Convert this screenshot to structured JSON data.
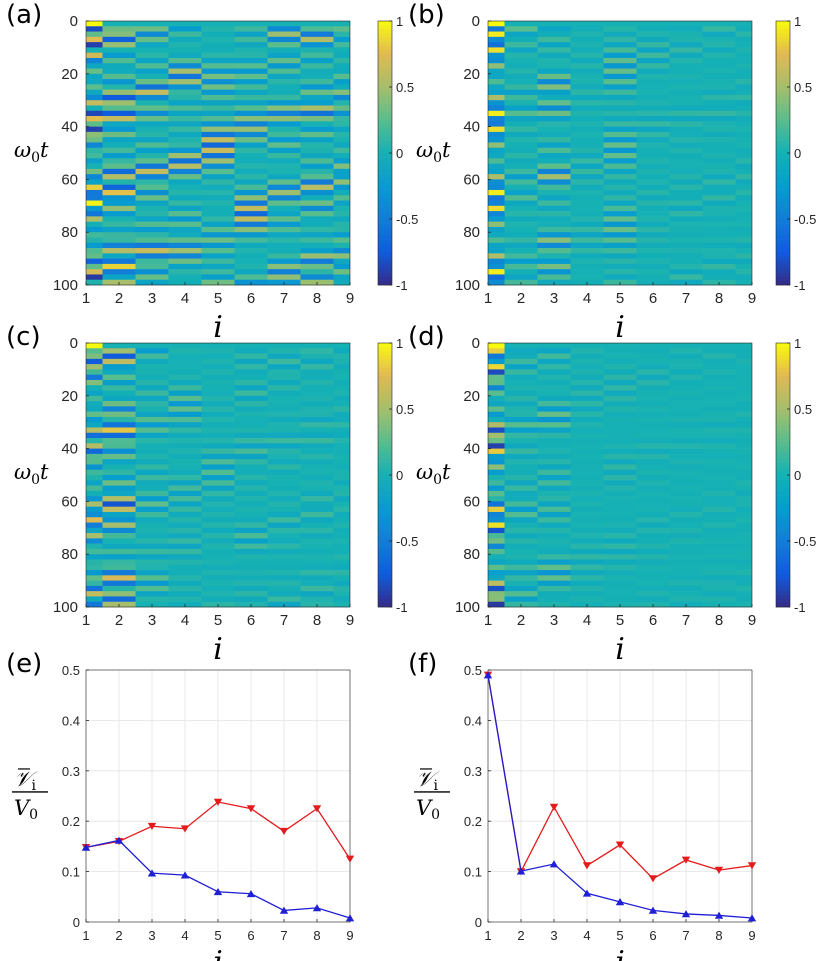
{
  "panel_letters": [
    "(a)",
    "(b)",
    "(c)",
    "(d)",
    "(e)",
    "(f)"
  ],
  "heatmap_axes": {
    "ylabel_main": "ω",
    "ylabel_sub": "0",
    "ylabel_tail": "t",
    "xlabel": "i",
    "x_ticks": [
      "1",
      "2",
      "3",
      "4",
      "5",
      "6",
      "7",
      "8",
      "9"
    ],
    "y_ticks": [
      "0",
      "20",
      "40",
      "60",
      "80",
      "100"
    ],
    "colorbar_ticks": [
      "1",
      "0.5",
      "0",
      "-0.5",
      "-1"
    ]
  },
  "line_axes": {
    "xlabel": "i",
    "ylabel_num_main": "𝒱",
    "ylabel_num_sub": "i",
    "ylabel_den_main": "V",
    "ylabel_den_sub": "0",
    "x_ticks": [
      "1",
      "2",
      "3",
      "4",
      "5",
      "6",
      "7",
      "8",
      "9"
    ],
    "y_ticks": [
      "0",
      "0.1",
      "0.2",
      "0.3",
      "0.4",
      "0.5"
    ]
  },
  "chart_data": [
    {
      "type": "heatmap",
      "panel": "(a)",
      "title": "",
      "xlabel": "i",
      "ylabel": "ω0 t",
      "xlim": [
        1,
        9
      ],
      "ylim": [
        0,
        100
      ],
      "clim": [
        -1,
        1
      ],
      "colormap": "parula",
      "description_columns": "nine oscillator columns; at t=0 column 1 = 1, others 0; energy travels through all columns (strong bands in columns 1-9)",
      "amplitude_envelope": [
        1.0,
        0.85,
        0.65,
        0.6,
        0.7,
        0.65,
        0.55,
        0.6,
        0.45
      ]
    },
    {
      "type": "heatmap",
      "panel": "(b)",
      "title": "",
      "xlabel": "i",
      "ylabel": "ω0 t",
      "xlim": [
        1,
        9
      ],
      "ylim": [
        0,
        100
      ],
      "clim": [
        -1,
        1
      ],
      "colormap": "parula",
      "amplitude_envelope": [
        1.0,
        0.25,
        0.5,
        0.15,
        0.3,
        0.15,
        0.12,
        0.12,
        0.1
      ]
    },
    {
      "type": "heatmap",
      "panel": "(c)",
      "title": "",
      "xlabel": "i",
      "ylabel": "ω0 t",
      "xlim": [
        1,
        9
      ],
      "ylim": [
        0,
        100
      ],
      "clim": [
        -1,
        1
      ],
      "colormap": "parula",
      "amplitude_envelope": [
        0.75,
        0.8,
        0.3,
        0.28,
        0.22,
        0.2,
        0.15,
        0.15,
        0.1
      ]
    },
    {
      "type": "heatmap",
      "panel": "(d)",
      "title": "",
      "xlabel": "i",
      "ylabel": "ω0 t",
      "xlim": [
        1,
        9
      ],
      "ylim": [
        0,
        100
      ],
      "clim": [
        -1,
        1
      ],
      "colormap": "parula",
      "amplitude_envelope": [
        1.0,
        0.25,
        0.3,
        0.12,
        0.1,
        0.08,
        0.06,
        0.06,
        0.05
      ]
    },
    {
      "type": "line",
      "panel": "(e)",
      "title": "",
      "xlabel": "i",
      "ylabel": "V̄i / V0",
      "xlim": [
        1,
        9
      ],
      "ylim": [
        0,
        0.5
      ],
      "grid": true,
      "x": [
        1,
        2,
        3,
        4,
        5,
        6,
        7,
        8,
        9
      ],
      "series": [
        {
          "name": "red",
          "color": "#e41a1c",
          "marker": "down-triangle",
          "values": [
            0.148,
            0.16,
            0.19,
            0.185,
            0.238,
            0.225,
            0.18,
            0.225,
            0.125
          ]
        },
        {
          "name": "blue",
          "color": "#1f1fd6",
          "marker": "up-triangle",
          "values": [
            0.148,
            0.162,
            0.097,
            0.093,
            0.06,
            0.056,
            0.023,
            0.028,
            0.008
          ]
        }
      ]
    },
    {
      "type": "line",
      "panel": "(f)",
      "title": "",
      "xlabel": "i",
      "ylabel": "V̄i / V0",
      "xlim": [
        1,
        9
      ],
      "ylim": [
        0,
        0.5
      ],
      "grid": true,
      "x": [
        1,
        2,
        3,
        4,
        5,
        6,
        7,
        8,
        9
      ],
      "series": [
        {
          "name": "red",
          "color": "#e41a1c",
          "marker": "down-triangle",
          "values": [
            0.49,
            0.1,
            0.228,
            0.112,
            0.153,
            0.086,
            0.123,
            0.103,
            0.112
          ]
        },
        {
          "name": "blue",
          "color": "#1f1fd6",
          "marker": "up-triangle",
          "values": [
            0.49,
            0.101,
            0.115,
            0.057,
            0.04,
            0.023,
            0.016,
            0.013,
            0.008
          ]
        }
      ]
    }
  ]
}
